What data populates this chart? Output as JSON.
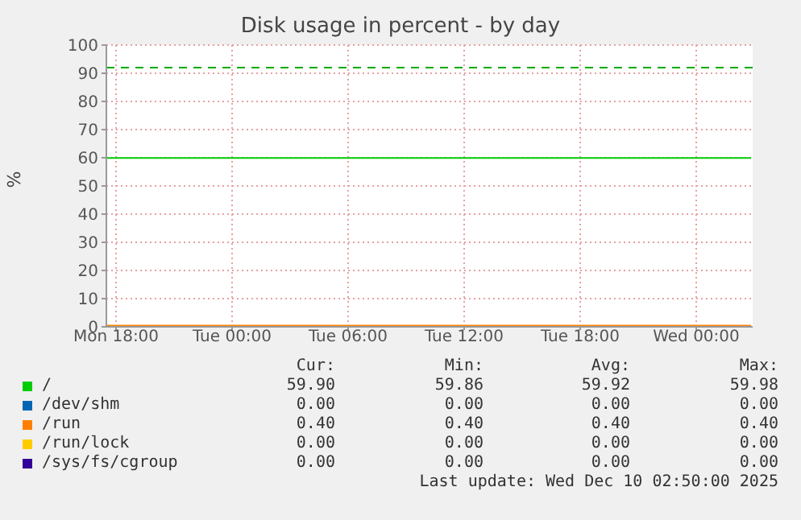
{
  "chart_data": {
    "type": "line",
    "title": "Disk usage in percent - by day",
    "ylabel": "%",
    "x": [
      "2025-12-08T17:30",
      "2025-12-10T02:50"
    ],
    "series": [
      {
        "name": "/",
        "color": "#00cc00",
        "values": [
          59.9,
          59.9
        ]
      },
      {
        "name": "/dev/shm",
        "color": "#0066b3",
        "values": [
          null,
          null
        ]
      },
      {
        "name": "/run",
        "color": "#ff8000",
        "values": [
          0.4,
          0.4
        ]
      },
      {
        "name": "/run/lock",
        "color": "#ffcc00",
        "values": [
          null,
          null
        ]
      },
      {
        "name": "/sys/fs/cgroup",
        "color": "#330099",
        "values": [
          null,
          null
        ]
      }
    ],
    "xlim": [
      "2025-12-08T17:30",
      "2025-12-10T02:55"
    ],
    "xticks": [
      {
        "value": "2025-12-08T18:00",
        "label": "Mon 18:00"
      },
      {
        "value": "2025-12-09T00:00",
        "label": "Tue 00:00"
      },
      {
        "value": "2025-12-09T06:00",
        "label": "Tue 06:00"
      },
      {
        "value": "2025-12-09T12:00",
        "label": "Tue 12:00"
      },
      {
        "value": "2025-12-09T18:00",
        "label": "Tue 18:00"
      },
      {
        "value": "2025-12-10T00:00",
        "label": "Wed 00:00"
      }
    ],
    "ylim": [
      0,
      100
    ],
    "yticks": [
      0,
      10,
      20,
      30,
      40,
      50,
      60,
      70,
      80,
      90,
      100
    ],
    "ref_lines": [
      {
        "axis": "y",
        "value": 92,
        "color": "#00aa00",
        "line_style": "dashed"
      }
    ],
    "grid": true,
    "legend": "bottom",
    "marker": "none",
    "line_style": "solid",
    "annotations": [
      "Cur:",
      "Min:",
      "Avg:",
      "Max:",
      "59.90",
      "59.86",
      "59.92",
      "59.98",
      "0.00",
      "0.00",
      "0.00",
      "0.00",
      "0.40",
      "0.40",
      "0.40",
      "0.40",
      "0.00",
      "0.00",
      "0.00",
      "0.00",
      "0.00",
      "0.00",
      "0.00",
      "0.00",
      "Last update: Wed Dec 10 02:50:00 2025"
    ]
  }
}
